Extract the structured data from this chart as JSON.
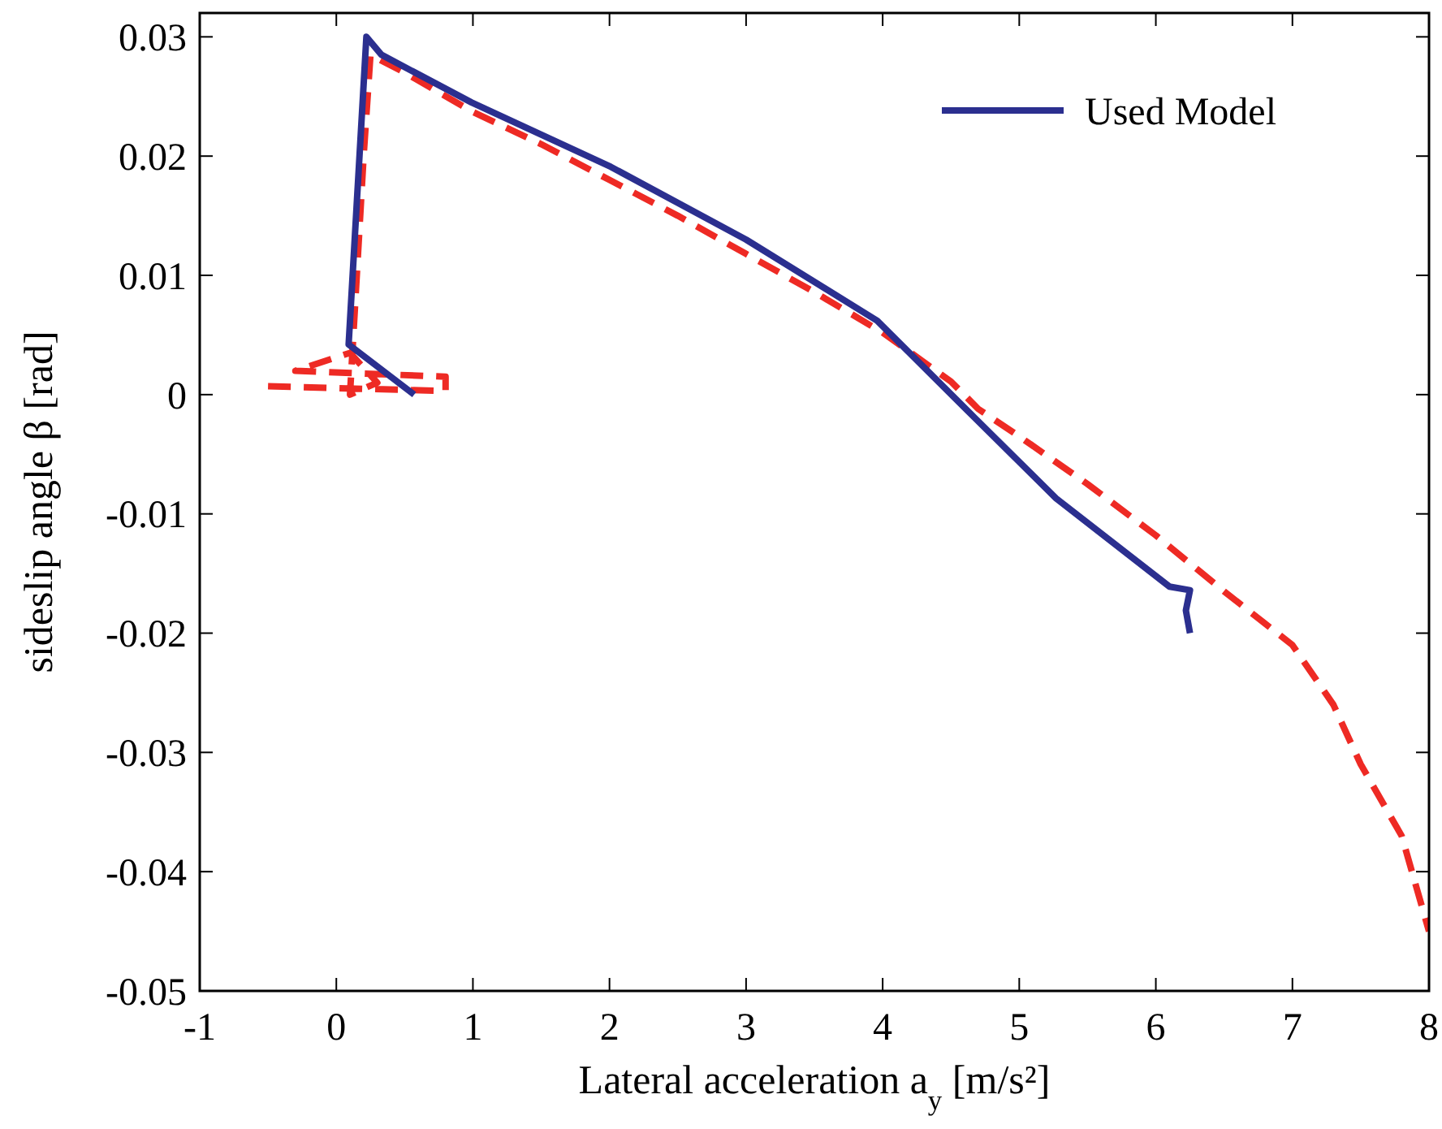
{
  "chart_data": {
    "type": "line",
    "xlabel": "Lateral acceleration a$_{y}$ [m/s²]",
    "ylabel": "sideslip angle β [rad]",
    "xlim": [
      -1,
      8
    ],
    "xticks": [
      -1,
      0,
      1,
      2,
      3,
      4,
      5,
      6,
      7,
      8
    ],
    "ylim": [
      -0.05,
      0.032
    ],
    "yticks": [
      -0.05,
      -0.04,
      -0.03,
      -0.02,
      -0.01,
      0,
      0.01,
      0.02,
      0.03
    ],
    "grid": false,
    "legend": "top right",
    "series": [
      {
        "color": "#ee2a24",
        "line_style": "dashed",
        "x": [
          -0.5,
          0.8,
          0.8,
          -0.3,
          0.1,
          0.3,
          0.1,
          0.15,
          0.2,
          0.25,
          0.5,
          1,
          1.5,
          2,
          2.5,
          3,
          3.5,
          4,
          4.5,
          4.7,
          5,
          5.5,
          6,
          6.5,
          7,
          7.3,
          7.5,
          7.8,
          8
        ],
        "values": [
          0.0007,
          0.0003,
          0.0015,
          0.002,
          0.0035,
          0.001,
          0,
          0.01,
          0.02,
          0.0285,
          0.027,
          0.0237,
          0.021,
          0.018,
          0.015,
          0.0118,
          0.0086,
          0.0052,
          0.0011,
          -0.0012,
          -0.0035,
          -0.0075,
          -0.0118,
          -0.0165,
          -0.021,
          -0.026,
          -0.031,
          -0.037,
          -0.045
        ]
      },
      {
        "name": "Used Model",
        "color": "#2b2f8f",
        "line_style": "solid",
        "x": [
          0.57,
          0.09,
          0.22,
          0.33,
          0.99,
          2.01,
          3.0,
          3.96,
          4.67,
          5.27,
          6.1,
          6.25,
          6.22,
          6.25
        ],
        "values": [
          0,
          0.0042,
          0.03,
          0.0285,
          0.0245,
          0.0191,
          0.013,
          0.0062,
          -0.0019,
          -0.0087,
          -0.0161,
          -0.0164,
          -0.0181,
          -0.02
        ]
      }
    ]
  }
}
